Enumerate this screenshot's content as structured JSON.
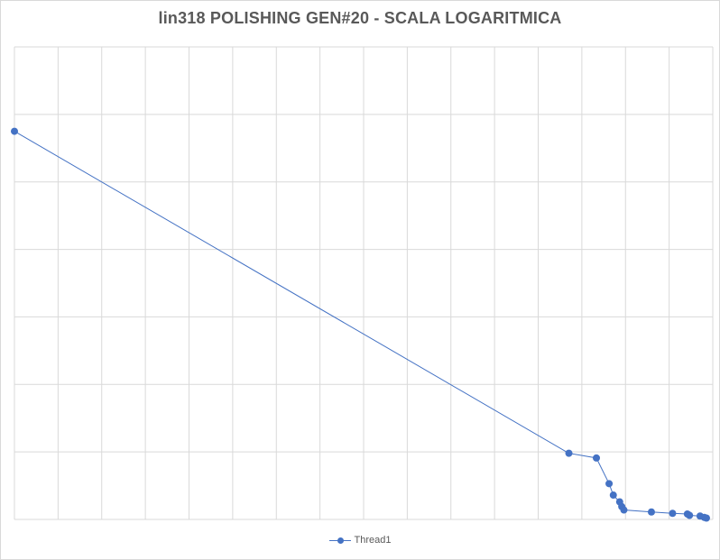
{
  "chart_data": {
    "type": "line",
    "title": "lin318 POLISHING GEN#20 - SCALA LOGARITMICA",
    "xlabel": "",
    "ylabel": "",
    "x_tick_labels_shown": false,
    "y_tick_labels_shown": false,
    "grid": true,
    "legend_position": "bottom",
    "series": [
      {
        "name": "Thread1",
        "color": "#4472c4",
        "marker": "circle",
        "points": [
          {
            "x": 0.0,
            "y": 5.75
          },
          {
            "x": 13.1,
            "y": 0.98
          },
          {
            "x": 13.75,
            "y": 0.91
          },
          {
            "x": 14.05,
            "y": 0.53
          },
          {
            "x": 14.15,
            "y": 0.36
          },
          {
            "x": 14.3,
            "y": 0.26
          },
          {
            "x": 14.35,
            "y": 0.19
          },
          {
            "x": 14.4,
            "y": 0.14
          },
          {
            "x": 15.05,
            "y": 0.11
          },
          {
            "x": 15.55,
            "y": 0.09
          },
          {
            "x": 15.9,
            "y": 0.08
          },
          {
            "x": 15.95,
            "y": 0.06
          },
          {
            "x": 16.2,
            "y": 0.05
          },
          {
            "x": 16.3,
            "y": 0.03
          },
          {
            "x": 16.35,
            "y": 0.02
          }
        ]
      }
    ],
    "xlim": [
      0,
      16.5
    ],
    "ylim": [
      0,
      7
    ],
    "x_gridlines": 16,
    "y_gridlines": 7
  }
}
